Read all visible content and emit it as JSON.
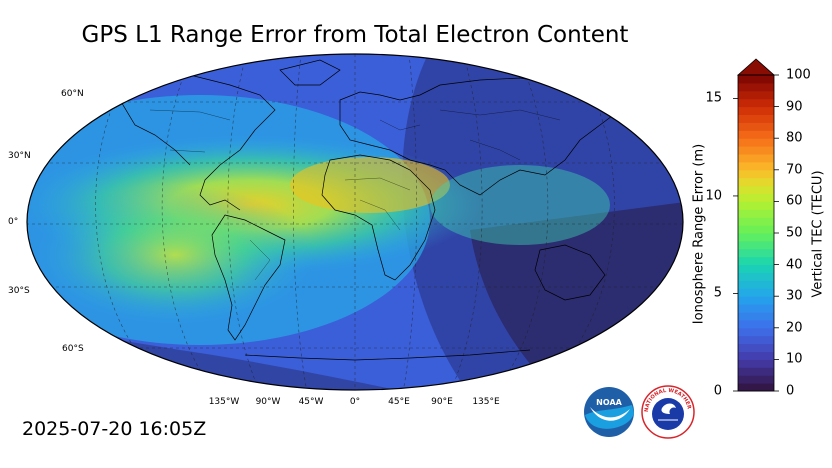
{
  "title": "GPS L1 Range Error from Total Electron Content",
  "timestamp": "2025-07-20 16:05Z",
  "map": {
    "projection": "robinson",
    "lat_labels": [
      "60°N",
      "30°N",
      "0°",
      "30°S",
      "60°S"
    ],
    "lon_labels": [
      "135°W",
      "90°W",
      "45°W",
      "0°",
      "45°E",
      "90°E",
      "135°E"
    ]
  },
  "colorbar": {
    "right_label": "Vertical TEC (TECU)",
    "left_label": "Ionosphere Range Error (m)",
    "right_ticks": [
      "100",
      "90",
      "80",
      "70",
      "60",
      "50",
      "40",
      "30",
      "20",
      "10",
      "0"
    ],
    "left_ticks": [
      "15",
      "10",
      "5",
      "0"
    ],
    "tec_range": [
      0,
      100
    ],
    "range_error_range": [
      0,
      16.2
    ],
    "extend": "max"
  },
  "logos": {
    "noaa_text": "NOAA",
    "nws_text": "NATIONAL WEATHER SERVICE"
  }
}
